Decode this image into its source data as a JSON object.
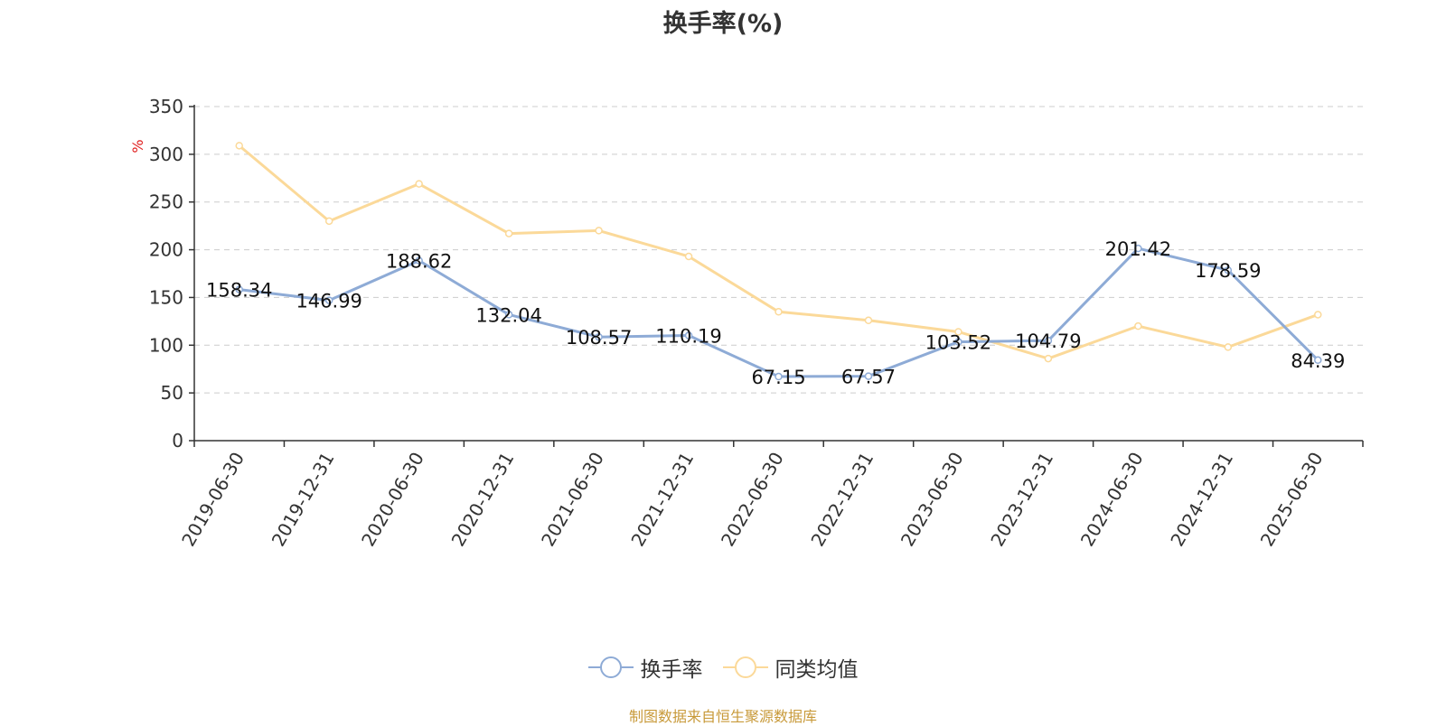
{
  "chart_data": {
    "type": "line",
    "title": "换手率(%)",
    "ylabel": "%",
    "xlabel": "",
    "ylim": [
      0,
      350
    ],
    "yticks": [
      0,
      50,
      100,
      150,
      200,
      250,
      300,
      350
    ],
    "grid": true,
    "legend_position": "bottom-center",
    "categories": [
      "2019-06-30",
      "2019-12-31",
      "2020-06-30",
      "2020-12-31",
      "2021-06-30",
      "2021-12-31",
      "2022-06-30",
      "2022-12-31",
      "2023-06-30",
      "2023-12-31",
      "2024-06-30",
      "2024-12-31",
      "2025-06-30"
    ],
    "series": [
      {
        "name": "换手率",
        "color": "#8eabd6",
        "values": [
          158.34,
          146.99,
          188.62,
          132.04,
          108.57,
          110.19,
          67.15,
          67.57,
          103.52,
          104.79,
          201.42,
          178.59,
          84.39
        ],
        "labels": [
          "158.34",
          "146.99",
          "188.62",
          "132.04",
          "108.57",
          "110.19",
          "67.15",
          "67.57",
          "103.52",
          "104.79",
          "201.42",
          "178.59",
          "84.39"
        ]
      },
      {
        "name": "同类均值",
        "color": "#fbd999",
        "values": [
          309,
          230,
          269,
          217,
          220,
          193,
          135,
          126,
          114,
          86,
          120,
          98,
          132
        ]
      }
    ]
  },
  "source_note": "制图数据来自恒生聚源数据库"
}
